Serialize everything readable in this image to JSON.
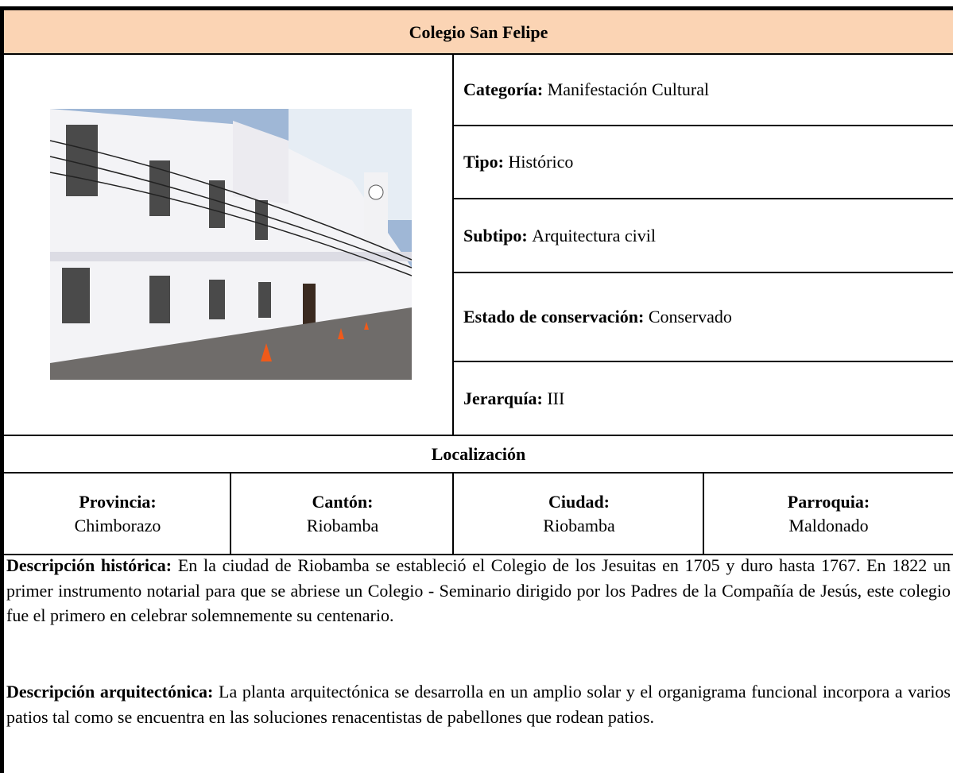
{
  "title": "Colegio San Felipe",
  "attributes": [
    {
      "label": "Categoría:",
      "value": "Manifestación Cultural"
    },
    {
      "label": "Tipo:",
      "value": "Histórico"
    },
    {
      "label": "Subtipo:",
      "value": "Arquitectura civil"
    },
    {
      "label": "Estado de conservación:",
      "value": "Conservado"
    },
    {
      "label": "Jerarquía:",
      "value": "III"
    }
  ],
  "location": {
    "title": "Localización",
    "fields": [
      {
        "label": "Provincia:",
        "value": "Chimborazo"
      },
      {
        "label": "Cantón:",
        "value": "Riobamba"
      },
      {
        "label": "Ciudad:",
        "value": "Riobamba"
      },
      {
        "label": "Parroquia:",
        "value": "Maldonado"
      }
    ]
  },
  "descriptions": [
    {
      "label": "Descripción histórica:",
      "text": "En la ciudad de Riobamba se estableció el Colegio de los Jesuitas en 1705 y duro hasta 1767. En 1822 un primer instrumento notarial para que se abriese un Colegio - Seminario dirigido por los Padres de la Compañía de Jesús, este colegio fue el primero en celebrar solemnemente su centenario."
    },
    {
      "label": "Descripción arquitectónica:",
      "text": "La planta arquitectónica se desarrolla en un amplio solar y el organigrama funcional incorpora a varios patios tal como se encuentra en las soluciones renacentistas de pabellones que rodean patios."
    }
  ]
}
